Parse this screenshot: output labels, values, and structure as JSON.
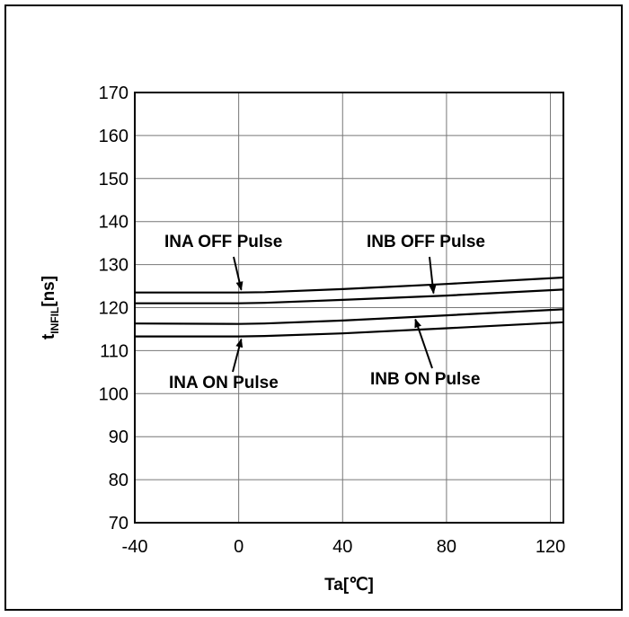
{
  "chart_data": {
    "type": "line",
    "title": "",
    "xlabel": "Ta[℃]",
    "ylabel": {
      "base": "t",
      "subscript": "INFIL",
      "unit": "[ns]"
    },
    "xlim": [
      -40,
      125
    ],
    "ylim": [
      70,
      170
    ],
    "x_ticks": [
      -40,
      0,
      40,
      80,
      120
    ],
    "y_ticks": [
      70,
      80,
      90,
      100,
      110,
      120,
      130,
      140,
      150,
      160,
      170
    ],
    "grid": true,
    "series": [
      {
        "x": [
          -40,
          0,
          10,
          40,
          80,
          125
        ],
        "values": [
          123.5,
          123.5,
          123.6,
          124.3,
          125.5,
          127.0
        ]
      },
      {
        "x": [
          -40,
          0,
          10,
          40,
          80,
          125
        ],
        "values": [
          121.0,
          121.0,
          121.1,
          121.8,
          122.8,
          124.2
        ]
      },
      {
        "x": [
          -40,
          0,
          10,
          40,
          80,
          125
        ],
        "values": [
          116.3,
          116.2,
          116.3,
          117.0,
          118.2,
          119.6
        ]
      },
      {
        "x": [
          -40,
          0,
          10,
          40,
          80,
          125
        ],
        "values": [
          113.3,
          113.3,
          113.4,
          114.0,
          115.2,
          116.6
        ]
      }
    ],
    "annotations": [
      {
        "text": "INA OFF Pulse",
        "target_x": 1,
        "target_y": 123.5
      },
      {
        "text": "INB OFF Pulse",
        "target_x": 75,
        "target_y": 122.7
      },
      {
        "text": "INA ON Pulse",
        "target_x": 1,
        "target_y": 113.3
      },
      {
        "text": "INB ON Pulse",
        "target_x": 68,
        "target_y": 117.9
      }
    ]
  }
}
